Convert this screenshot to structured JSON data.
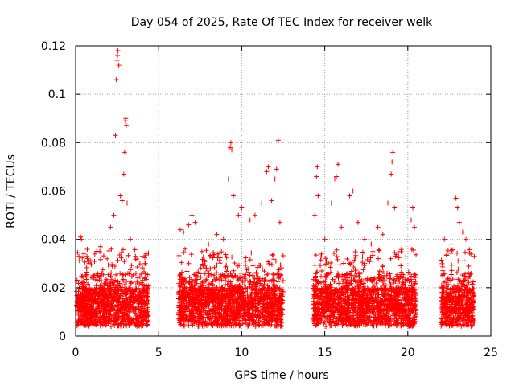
{
  "chart_data": {
    "type": "scatter",
    "title": "Day 054 of 2025, Rate Of TEC Index for receiver welk",
    "xlabel": "GPS time / hours",
    "ylabel": "ROTI / TECUs",
    "xlim": [
      0,
      25
    ],
    "ylim": [
      0,
      0.12
    ],
    "x_ticks": [
      0,
      5,
      10,
      15,
      20,
      25
    ],
    "y_ticks": [
      0,
      0.02,
      0.04,
      0.06,
      0.08,
      0.1,
      0.12
    ],
    "x_tick_labels": [
      "0",
      "5",
      "10",
      "15",
      "20",
      "25"
    ],
    "y_tick_labels": [
      "0",
      "0.02",
      "0.04",
      "0.06",
      "0.08",
      "0.1",
      "0.12"
    ],
    "grid": true,
    "marker": "+",
    "color": "#ff0000",
    "data_segments": [
      {
        "x_range": [
          0.05,
          4.4
        ]
      },
      {
        "x_range": [
          6.2,
          12.5
        ]
      },
      {
        "x_range": [
          14.3,
          20.5
        ]
      },
      {
        "x_range": [
          22.0,
          24.0
        ]
      }
    ],
    "points": [
      [
        0.2,
        0.033
      ],
      [
        0.3,
        0.041
      ],
      [
        0.35,
        0.04
      ],
      [
        0.5,
        0.034
      ],
      [
        0.8,
        0.03
      ],
      [
        1.1,
        0.025
      ],
      [
        1.5,
        0.037
      ],
      [
        1.9,
        0.032
      ],
      [
        2.1,
        0.045
      ],
      [
        2.3,
        0.05
      ],
      [
        2.4,
        0.083
      ],
      [
        2.45,
        0.106
      ],
      [
        2.5,
        0.114
      ],
      [
        2.52,
        0.116
      ],
      [
        2.55,
        0.118
      ],
      [
        2.6,
        0.112
      ],
      [
        2.7,
        0.058
      ],
      [
        2.8,
        0.056
      ],
      [
        2.9,
        0.067
      ],
      [
        2.95,
        0.076
      ],
      [
        3.0,
        0.089
      ],
      [
        3.02,
        0.09
      ],
      [
        3.05,
        0.087
      ],
      [
        3.1,
        0.055
      ],
      [
        3.3,
        0.04
      ],
      [
        3.6,
        0.033
      ],
      [
        4.0,
        0.033
      ],
      [
        4.2,
        0.03
      ],
      [
        6.3,
        0.044
      ],
      [
        6.5,
        0.043
      ],
      [
        6.8,
        0.046
      ],
      [
        7.0,
        0.05
      ],
      [
        7.2,
        0.047
      ],
      [
        7.6,
        0.035
      ],
      [
        8.0,
        0.038
      ],
      [
        8.5,
        0.042
      ],
      [
        8.9,
        0.04
      ],
      [
        9.2,
        0.065
      ],
      [
        9.3,
        0.078
      ],
      [
        9.35,
        0.08
      ],
      [
        9.4,
        0.077
      ],
      [
        9.5,
        0.058
      ],
      [
        9.8,
        0.05
      ],
      [
        10.0,
        0.053
      ],
      [
        10.5,
        0.048
      ],
      [
        10.8,
        0.05
      ],
      [
        11.2,
        0.055
      ],
      [
        11.5,
        0.068
      ],
      [
        11.6,
        0.07
      ],
      [
        11.7,
        0.072
      ],
      [
        11.8,
        0.056
      ],
      [
        12.0,
        0.065
      ],
      [
        12.1,
        0.069
      ],
      [
        12.2,
        0.081
      ],
      [
        12.3,
        0.047
      ],
      [
        14.4,
        0.05
      ],
      [
        14.5,
        0.066
      ],
      [
        14.55,
        0.07
      ],
      [
        14.6,
        0.058
      ],
      [
        15.0,
        0.04
      ],
      [
        15.4,
        0.055
      ],
      [
        15.6,
        0.065
      ],
      [
        15.7,
        0.066
      ],
      [
        15.8,
        0.071
      ],
      [
        16.0,
        0.045
      ],
      [
        16.5,
        0.058
      ],
      [
        16.7,
        0.06
      ],
      [
        17.0,
        0.047
      ],
      [
        17.4,
        0.04
      ],
      [
        17.8,
        0.038
      ],
      [
        18.2,
        0.045
      ],
      [
        18.5,
        0.042
      ],
      [
        18.8,
        0.055
      ],
      [
        19.0,
        0.067
      ],
      [
        19.05,
        0.072
      ],
      [
        19.1,
        0.076
      ],
      [
        19.2,
        0.053
      ],
      [
        19.6,
        0.035
      ],
      [
        20.2,
        0.048
      ],
      [
        20.3,
        0.053
      ],
      [
        20.4,
        0.045
      ],
      [
        22.2,
        0.04
      ],
      [
        22.6,
        0.038
      ],
      [
        22.9,
        0.057
      ],
      [
        23.0,
        0.053
      ],
      [
        23.1,
        0.047
      ],
      [
        23.3,
        0.043
      ],
      [
        23.5,
        0.04
      ],
      [
        23.8,
        0.034
      ],
      [
        24.0,
        0.033
      ]
    ]
  }
}
